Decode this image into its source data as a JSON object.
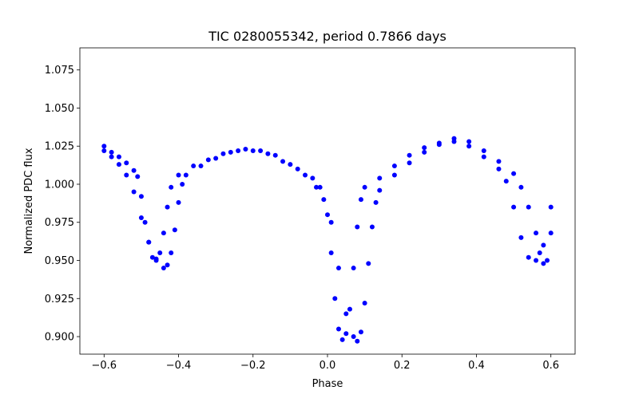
{
  "chart_data": {
    "type": "scatter",
    "title": "TIC 0280055342, period 0.7866 days",
    "xlabel": "Phase",
    "ylabel": "Normalized PDC flux",
    "xlim": [
      -0.665,
      0.665
    ],
    "ylim": [
      0.8885,
      1.0895
    ],
    "grid": false,
    "color": "#0000ff",
    "xticks": [
      -0.6,
      -0.4,
      -0.2,
      0.0,
      0.2,
      0.4,
      0.6
    ],
    "xtick_labels": [
      "−0.6",
      "−0.4",
      "−0.2",
      "0.0",
      "0.2",
      "0.4",
      "0.6"
    ],
    "yticks": [
      0.9,
      0.925,
      0.95,
      0.975,
      1.0,
      1.025,
      1.05,
      1.075
    ],
    "ytick_labels": [
      "0.900",
      "0.925",
      "0.950",
      "0.975",
      "1.000",
      "1.025",
      "1.050",
      "1.075"
    ],
    "series": [
      {
        "values": [
          [
            -0.6,
            1.025
          ],
          [
            -0.58,
            1.021
          ],
          [
            -0.56,
            1.018
          ],
          [
            -0.54,
            1.014
          ],
          [
            -0.52,
            1.009
          ],
          [
            -0.51,
            1.005
          ],
          [
            -0.5,
            0.992
          ],
          [
            -0.49,
            0.975
          ],
          [
            -0.48,
            0.962
          ],
          [
            -0.47,
            0.952
          ],
          [
            -0.46,
            0.95
          ],
          [
            -0.45,
            0.955
          ],
          [
            -0.44,
            0.968
          ],
          [
            -0.43,
            0.985
          ],
          [
            -0.42,
            0.998
          ],
          [
            -0.4,
            1.006
          ],
          [
            -0.36,
            1.012
          ],
          [
            -0.32,
            1.016
          ],
          [
            -0.28,
            1.02
          ],
          [
            -0.24,
            1.022
          ],
          [
            -0.2,
            1.022
          ],
          [
            -0.16,
            1.02
          ],
          [
            -0.12,
            1.015
          ],
          [
            -0.08,
            1.01
          ],
          [
            -0.04,
            1.004
          ],
          [
            -0.02,
            0.998
          ],
          [
            0.0,
            0.98
          ],
          [
            0.01,
            0.955
          ],
          [
            0.02,
            0.925
          ],
          [
            0.03,
            0.905
          ],
          [
            0.04,
            0.898
          ],
          [
            0.05,
            0.902
          ],
          [
            0.06,
            0.918
          ],
          [
            0.07,
            0.945
          ],
          [
            0.08,
            0.972
          ],
          [
            0.09,
            0.99
          ],
          [
            0.1,
            0.998
          ],
          [
            0.14,
            1.004
          ],
          [
            0.18,
            1.012
          ],
          [
            0.22,
            1.019
          ],
          [
            0.26,
            1.024
          ],
          [
            0.3,
            1.027
          ],
          [
            0.34,
            1.028
          ],
          [
            0.38,
            1.025
          ],
          [
            0.42,
            1.018
          ],
          [
            0.46,
            1.01
          ],
          [
            0.48,
            1.002
          ],
          [
            0.5,
            0.985
          ],
          [
            0.52,
            0.965
          ],
          [
            0.54,
            0.952
          ],
          [
            0.56,
            0.95
          ],
          [
            0.58,
            0.96
          ],
          [
            0.6,
            0.985
          ]
        ]
      },
      {
        "values": [
          [
            -0.6,
            1.022
          ],
          [
            -0.58,
            1.018
          ],
          [
            -0.56,
            1.013
          ],
          [
            -0.54,
            1.006
          ],
          [
            -0.52,
            0.995
          ],
          [
            -0.5,
            0.978
          ],
          [
            -0.48,
            0.962
          ],
          [
            -0.46,
            0.951
          ],
          [
            -0.44,
            0.945
          ],
          [
            -0.43,
            0.947
          ],
          [
            -0.42,
            0.955
          ],
          [
            -0.41,
            0.97
          ],
          [
            -0.4,
            0.988
          ],
          [
            -0.39,
            1.0
          ],
          [
            -0.38,
            1.006
          ],
          [
            -0.34,
            1.012
          ],
          [
            -0.3,
            1.017
          ],
          [
            -0.26,
            1.021
          ],
          [
            -0.22,
            1.023
          ],
          [
            -0.18,
            1.022
          ],
          [
            -0.14,
            1.019
          ],
          [
            -0.1,
            1.013
          ],
          [
            -0.06,
            1.006
          ],
          [
            -0.03,
            0.998
          ],
          [
            -0.01,
            0.99
          ],
          [
            0.01,
            0.975
          ],
          [
            0.03,
            0.945
          ],
          [
            0.05,
            0.915
          ],
          [
            0.07,
            0.9
          ],
          [
            0.08,
            0.897
          ],
          [
            0.09,
            0.903
          ],
          [
            0.1,
            0.922
          ],
          [
            0.11,
            0.948
          ],
          [
            0.12,
            0.972
          ],
          [
            0.13,
            0.988
          ],
          [
            0.14,
            0.996
          ],
          [
            0.18,
            1.006
          ],
          [
            0.22,
            1.014
          ],
          [
            0.26,
            1.021
          ],
          [
            0.3,
            1.026
          ],
          [
            0.34,
            1.03
          ],
          [
            0.38,
            1.028
          ],
          [
            0.42,
            1.022
          ],
          [
            0.46,
            1.015
          ],
          [
            0.5,
            1.007
          ],
          [
            0.52,
            0.998
          ],
          [
            0.54,
            0.985
          ],
          [
            0.56,
            0.968
          ],
          [
            0.57,
            0.955
          ],
          [
            0.58,
            0.948
          ],
          [
            0.59,
            0.95
          ],
          [
            0.6,
            0.968
          ]
        ]
      }
    ]
  }
}
